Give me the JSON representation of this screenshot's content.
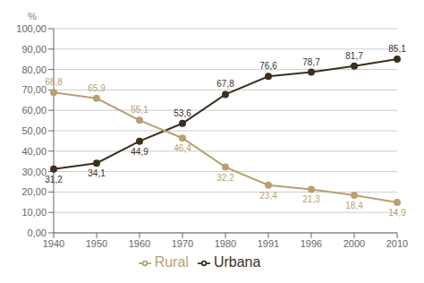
{
  "chart_data": {
    "type": "line",
    "ylabel": "%",
    "categories": [
      "1940",
      "1950",
      "1960",
      "1970",
      "1980",
      "1991",
      "1996",
      "2000",
      "2010"
    ],
    "series": [
      {
        "name": "Urbana",
        "color": "#3d2f1e",
        "values": [
          31.2,
          34.1,
          44.9,
          53.6,
          67.8,
          76.6,
          78.7,
          81.7,
          85.1
        ],
        "value_labels": [
          "31,2",
          "34,1",
          "44,9",
          "53,6",
          "67,8",
          "76,6",
          "78,7",
          "81,7",
          "85,1"
        ]
      },
      {
        "name": "Rural",
        "color": "#b8a070",
        "values": [
          68.8,
          65.9,
          55.1,
          46.4,
          32.2,
          23.4,
          21.3,
          18.4,
          14.9
        ],
        "value_labels": [
          "68,8",
          "65,9",
          "55,1",
          "46,4",
          "32,2",
          "23,4",
          "21,3",
          "18,4",
          "14,9"
        ]
      }
    ],
    "ylim": [
      0,
      100
    ],
    "yticks": [
      {
        "value": 0,
        "label": "0,00"
      },
      {
        "value": 10,
        "label": "10,00"
      },
      {
        "value": 20,
        "label": "20,00"
      },
      {
        "value": 30,
        "label": "30,00"
      },
      {
        "value": 40,
        "label": "40,00"
      },
      {
        "value": 50,
        "label": "50,00"
      },
      {
        "value": 60,
        "label": "60,00"
      },
      {
        "value": 70,
        "label": "70,00"
      },
      {
        "value": 80,
        "label": "80,00"
      },
      {
        "value": 90,
        "label": "90,00"
      },
      {
        "value": 100,
        "label": "100,00"
      }
    ],
    "grid": true,
    "legend": "bottom",
    "data_labels": true,
    "marker": "circle"
  }
}
